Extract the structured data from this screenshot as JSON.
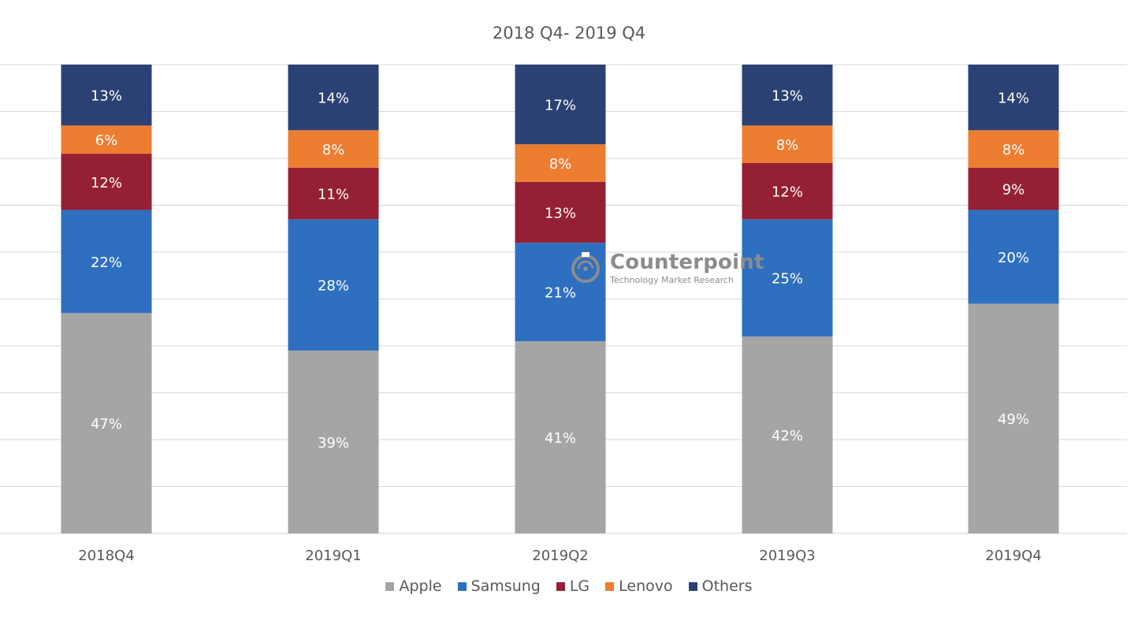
{
  "chart_data": {
    "type": "bar",
    "stacked": true,
    "title": "2018 Q4- 2019 Q4",
    "categories": [
      "2018Q4",
      "2019Q1",
      "2019Q2",
      "2019Q3",
      "2019Q4"
    ],
    "series": [
      {
        "name": "Apple",
        "color": "#a5a5a5",
        "values": [
          47,
          39,
          41,
          42,
          49
        ],
        "labels": [
          "47%",
          "39%",
          "41%",
          "42%",
          "49%"
        ]
      },
      {
        "name": "Samsung",
        "color": "#2e6fc0",
        "values": [
          22,
          28,
          21,
          25,
          20
        ],
        "labels": [
          "22%",
          "28%",
          "21%",
          "25%",
          "20%"
        ]
      },
      {
        "name": "LG",
        "color": "#962033",
        "values": [
          12,
          11,
          13,
          12,
          9
        ],
        "labels": [
          "12%",
          "11%",
          "13%",
          "12%",
          "9%"
        ]
      },
      {
        "name": "Lenovo",
        "color": "#ed7d31",
        "values": [
          6,
          8,
          8,
          8,
          8
        ],
        "labels": [
          "6%",
          "8%",
          "8%",
          "8%",
          "8%"
        ]
      },
      {
        "name": "Others",
        "color": "#2c4173",
        "values": [
          13,
          14,
          17,
          13,
          14
        ],
        "labels": [
          "13%",
          "14%",
          "17%",
          "13%",
          "14%"
        ]
      }
    ],
    "ylim": [
      0,
      100
    ],
    "grid": true,
    "legend": "bottom"
  },
  "watermark": {
    "name": "Counterpoint",
    "tagline": "Technology Market Research"
  }
}
